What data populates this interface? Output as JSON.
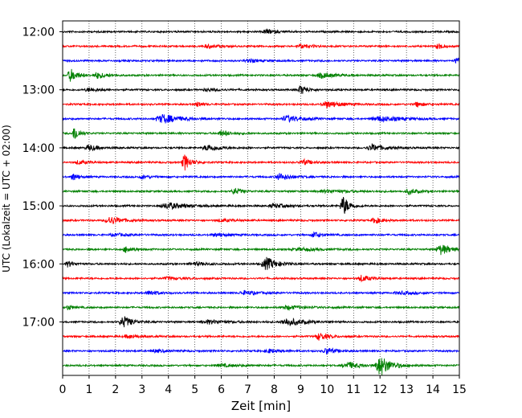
{
  "chart_data": {
    "type": "line",
    "title": "",
    "xlabel": "Zeit  [min]",
    "ylabel": "UTC (Lokalzeit = UTC + 02:00)",
    "xlim": [
      0,
      15
    ],
    "x_ticks": [
      "0",
      "1",
      "2",
      "3",
      "4",
      "5",
      "6",
      "7",
      "8",
      "9",
      "10",
      "11",
      "12",
      "13",
      "14",
      "15"
    ],
    "y_ticks": [
      "12:00",
      "13:00",
      "14:00",
      "15:00",
      "16:00",
      "17:00"
    ],
    "row_interval_min": 15,
    "first_row": "12:00",
    "grid": "vertical-dotted",
    "trace_colors": [
      "#000000",
      "#ff0000",
      "#0000ff",
      "#008000"
    ],
    "rows": [
      {
        "start": "12:00",
        "color": "#000000",
        "events": [
          [
            7.7,
            0.35,
            0.5
          ]
        ]
      },
      {
        "start": "12:15",
        "color": "#ff0000",
        "events": [
          [
            14.2,
            0.5,
            0.3
          ],
          [
            5.5,
            0.3,
            0.5
          ],
          [
            9.0,
            0.3,
            0.6
          ]
        ]
      },
      {
        "start": "12:30",
        "color": "#0000ff",
        "events": [
          [
            14.9,
            0.5,
            0.3
          ],
          [
            7.0,
            0.25,
            0.6
          ]
        ]
      },
      {
        "start": "12:45",
        "color": "#008000",
        "events": [
          [
            0.3,
            1.0,
            0.4
          ],
          [
            1.3,
            0.5,
            0.5
          ],
          [
            9.8,
            0.4,
            0.8
          ]
        ]
      },
      {
        "start": "13:00",
        "color": "#000000",
        "events": [
          [
            9.0,
            0.7,
            0.4
          ],
          [
            1.0,
            0.3,
            0.6
          ],
          [
            5.5,
            0.25,
            0.6
          ]
        ]
      },
      {
        "start": "13:15",
        "color": "#ff0000",
        "events": [
          [
            10.0,
            0.5,
            0.8
          ],
          [
            5.1,
            0.4,
            0.3
          ],
          [
            13.4,
            0.4,
            0.4
          ]
        ]
      },
      {
        "start": "13:30",
        "color": "#0000ff",
        "events": [
          [
            3.8,
            0.7,
            1.0
          ],
          [
            8.5,
            0.5,
            0.8
          ],
          [
            12.0,
            0.4,
            1.2
          ]
        ]
      },
      {
        "start": "13:45",
        "color": "#008000",
        "events": [
          [
            0.45,
            1.3,
            0.25
          ],
          [
            6.0,
            0.4,
            0.6
          ]
        ]
      },
      {
        "start": "14:00",
        "color": "#000000",
        "events": [
          [
            1.0,
            0.5,
            0.5
          ],
          [
            5.5,
            0.5,
            0.7
          ],
          [
            11.7,
            0.5,
            0.8
          ]
        ]
      },
      {
        "start": "14:15",
        "color": "#ff0000",
        "events": [
          [
            4.6,
            1.3,
            0.35
          ],
          [
            9.1,
            0.4,
            0.5
          ],
          [
            0.6,
            0.3,
            0.5
          ]
        ]
      },
      {
        "start": "14:30",
        "color": "#0000ff",
        "events": [
          [
            0.4,
            0.6,
            0.3
          ],
          [
            8.2,
            0.5,
            0.7
          ],
          [
            3.0,
            0.25,
            0.6
          ]
        ]
      },
      {
        "start": "14:45",
        "color": "#008000",
        "events": [
          [
            6.5,
            0.5,
            0.4
          ],
          [
            13.1,
            0.4,
            0.5
          ],
          [
            10.0,
            0.2,
            1.5
          ]
        ]
      },
      {
        "start": "15:00",
        "color": "#000000",
        "events": [
          [
            10.6,
            1.6,
            0.35
          ],
          [
            4.0,
            0.5,
            1.0
          ],
          [
            8.0,
            0.3,
            0.8
          ]
        ]
      },
      {
        "start": "15:15",
        "color": "#ff0000",
        "events": [
          [
            1.8,
            0.6,
            0.7
          ],
          [
            11.8,
            0.5,
            0.4
          ],
          [
            6.0,
            0.2,
            0.8
          ]
        ]
      },
      {
        "start": "15:30",
        "color": "#0000ff",
        "events": [
          [
            9.5,
            0.5,
            0.4
          ],
          [
            5.8,
            0.25,
            0.8
          ],
          [
            2.0,
            0.2,
            0.8
          ]
        ]
      },
      {
        "start": "15:45",
        "color": "#008000",
        "events": [
          [
            14.3,
            0.8,
            0.6
          ],
          [
            2.4,
            0.5,
            0.4
          ],
          [
            9.0,
            0.2,
            1.2
          ]
        ]
      },
      {
        "start": "16:00",
        "color": "#000000",
        "events": [
          [
            7.7,
            1.0,
            0.6
          ],
          [
            0.2,
            0.5,
            0.3
          ],
          [
            5.0,
            0.25,
            0.8
          ]
        ]
      },
      {
        "start": "16:15",
        "color": "#ff0000",
        "events": [
          [
            11.3,
            0.5,
            0.5
          ],
          [
            4.0,
            0.2,
            0.8
          ]
        ]
      },
      {
        "start": "16:30",
        "color": "#0000ff",
        "events": [
          [
            3.3,
            0.4,
            0.5
          ],
          [
            6.9,
            0.3,
            0.8
          ],
          [
            12.8,
            0.2,
            1.0
          ]
        ]
      },
      {
        "start": "16:45",
        "color": "#008000",
        "events": [
          [
            0.2,
            0.4,
            0.3
          ],
          [
            8.5,
            0.3,
            0.9
          ]
        ]
      },
      {
        "start": "17:00",
        "color": "#000000",
        "events": [
          [
            2.3,
            0.9,
            0.5
          ],
          [
            8.5,
            0.6,
            0.9
          ],
          [
            5.5,
            0.3,
            1.0
          ]
        ]
      },
      {
        "start": "17:15",
        "color": "#ff0000",
        "events": [
          [
            9.7,
            0.6,
            0.5
          ],
          [
            2.5,
            0.3,
            0.6
          ]
        ]
      },
      {
        "start": "17:30",
        "color": "#0000ff",
        "events": [
          [
            10.0,
            0.5,
            0.5
          ],
          [
            7.8,
            0.3,
            0.6
          ],
          [
            3.5,
            0.2,
            0.8
          ]
        ]
      },
      {
        "start": "17:45",
        "color": "#008000",
        "events": [
          [
            12.0,
            1.6,
            0.6
          ],
          [
            10.8,
            0.5,
            0.8
          ],
          [
            6.0,
            0.2,
            1.0
          ]
        ]
      }
    ]
  }
}
